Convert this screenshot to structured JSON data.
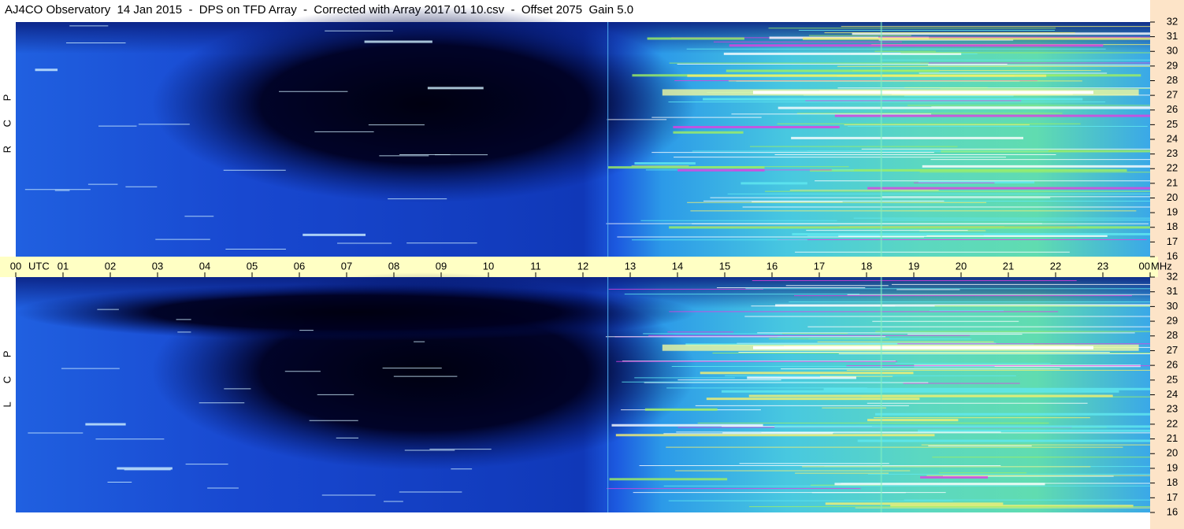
{
  "chart_data": {
    "type": "spectrogram",
    "title": "AJ4CO Observatory  14 Jan 2015  -  DPS on TFD Array  -  Corrected with Array 2017 01 10.csv  -  Offset 2075  Gain 5.0",
    "categories": [
      "00",
      "01",
      "02",
      "03",
      "04",
      "05",
      "06",
      "07",
      "08",
      "09",
      "10",
      "11",
      "12",
      "13",
      "14",
      "15",
      "16",
      "17",
      "18",
      "19",
      "20",
      "21",
      "22",
      "23",
      "00"
    ],
    "x_unit": "UTC",
    "y_unit": "MHz",
    "ylim": [
      16,
      32
    ],
    "yticks": [
      16,
      17,
      18,
      19,
      20,
      21,
      22,
      23,
      24,
      25,
      26,
      27,
      28,
      29,
      30,
      31,
      32
    ],
    "panels": [
      {
        "label": "R C P"
      },
      {
        "label": "L C P"
      }
    ]
  }
}
